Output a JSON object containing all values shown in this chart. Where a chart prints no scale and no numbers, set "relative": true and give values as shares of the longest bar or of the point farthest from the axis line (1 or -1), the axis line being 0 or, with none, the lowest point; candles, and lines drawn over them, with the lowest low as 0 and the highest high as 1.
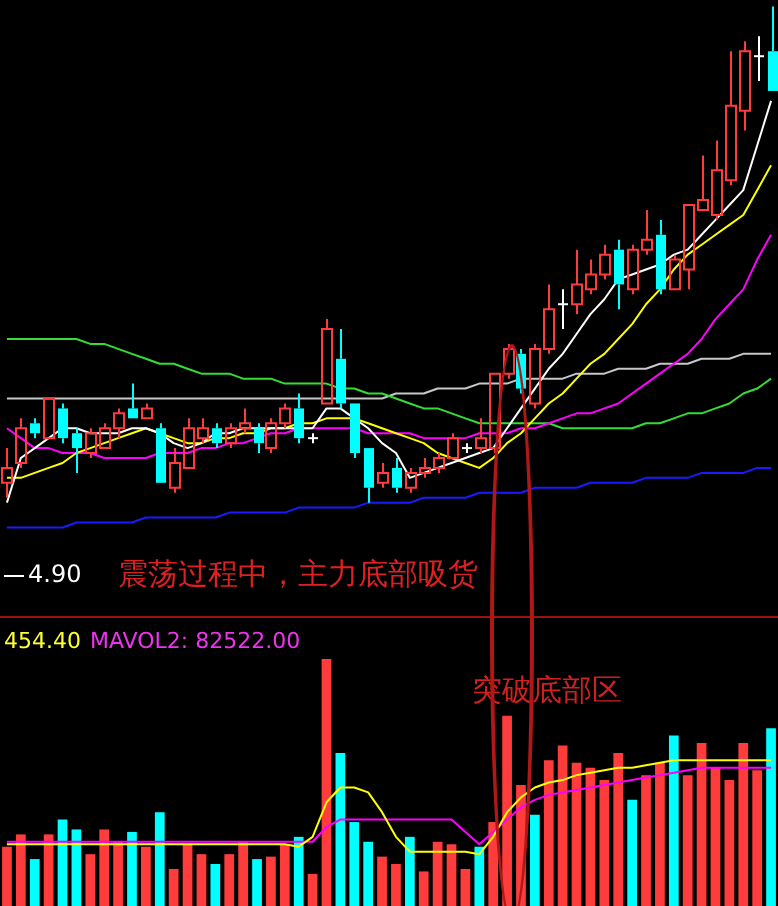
{
  "chart_data": [
    {
      "type": "candlestick",
      "relative": true,
      "legend": false,
      "categories": [
        null,
        null,
        null,
        null,
        null,
        null,
        null,
        null,
        null,
        null,
        null,
        null,
        null,
        null,
        null,
        null,
        null,
        null,
        null,
        null,
        null,
        null,
        null,
        null,
        null,
        null,
        null,
        null,
        null,
        null,
        null,
        null,
        null,
        null,
        null,
        null,
        null,
        null,
        null,
        null,
        null,
        null,
        null,
        null,
        null,
        null,
        null,
        null,
        null,
        null,
        null,
        null,
        null,
        null,
        null,
        null
      ],
      "ohlc": [
        [
          0.04,
          0.11,
          0.01,
          0.07
        ],
        [
          0.08,
          0.17,
          0.07,
          0.15
        ],
        [
          0.16,
          0.17,
          0.13,
          0.14
        ],
        [
          0.13,
          0.21,
          0.13,
          0.21
        ],
        [
          0.19,
          0.2,
          0.12,
          0.13
        ],
        [
          0.14,
          0.15,
          0.06,
          0.11
        ],
        [
          0.1,
          0.15,
          0.09,
          0.14
        ],
        [
          0.11,
          0.16,
          0.11,
          0.15
        ],
        [
          0.15,
          0.19,
          0.13,
          0.18
        ],
        [
          0.19,
          0.24,
          0.17,
          0.17
        ],
        [
          0.17,
          0.2,
          0.17,
          0.19
        ],
        [
          0.15,
          0.16,
          0.04,
          0.04
        ],
        [
          0.03,
          0.11,
          0.02,
          0.08
        ],
        [
          0.07,
          0.17,
          0.07,
          0.15
        ],
        [
          0.13,
          0.17,
          0.12,
          0.15
        ],
        [
          0.15,
          0.16,
          0.11,
          0.12
        ],
        [
          0.12,
          0.16,
          0.11,
          0.15
        ],
        [
          0.15,
          0.19,
          0.14,
          0.16
        ],
        [
          0.15,
          0.16,
          0.1,
          0.12
        ],
        [
          0.11,
          0.17,
          0.1,
          0.16
        ],
        [
          0.16,
          0.2,
          0.15,
          0.19
        ],
        [
          0.19,
          0.22,
          0.12,
          0.13
        ],
        [
          0.13,
          0.14,
          0.12,
          0.13
        ],
        [
          0.2,
          0.37,
          0.2,
          0.35
        ],
        [
          0.29,
          0.35,
          0.19,
          0.2
        ],
        [
          0.2,
          0.2,
          0.09,
          0.1
        ],
        [
          0.11,
          0.11,
          0,
          0.03
        ],
        [
          0.04,
          0.08,
          0.03,
          0.06
        ],
        [
          0.07,
          0.09,
          0.02,
          0.03
        ],
        [
          0.03,
          0.07,
          0.02,
          0.06
        ],
        [
          0.06,
          0.09,
          0.05,
          0.07
        ],
        [
          0.07,
          0.1,
          0.06,
          0.09
        ],
        [
          0.09,
          0.14,
          0.09,
          0.13
        ],
        [
          0.11,
          0.12,
          0.1,
          0.11
        ],
        [
          0.11,
          0.17,
          0.1,
          0.13
        ],
        [
          0.11,
          0.26,
          0.1,
          0.26
        ],
        [
          0.26,
          0.32,
          0.25,
          0.31
        ],
        [
          0.3,
          0.31,
          0.22,
          0.23
        ],
        [
          0.2,
          0.32,
          0.19,
          0.31
        ],
        [
          0.31,
          0.44,
          0.3,
          0.39
        ],
        [
          0.4,
          0.43,
          0.35,
          0.4
        ],
        [
          0.4,
          0.51,
          0.38,
          0.44
        ],
        [
          0.43,
          0.49,
          0.42,
          0.46
        ],
        [
          0.46,
          0.52,
          0.45,
          0.5
        ],
        [
          0.51,
          0.53,
          0.39,
          0.44
        ],
        [
          0.43,
          0.52,
          0.42,
          0.51
        ],
        [
          0.51,
          0.59,
          0.5,
          0.53
        ],
        [
          0.54,
          0.57,
          0.42,
          0.43
        ],
        [
          0.43,
          0.5,
          0.43,
          0.49
        ],
        [
          0.47,
          0.6,
          0.43,
          0.6
        ],
        [
          0.59,
          0.7,
          0.59,
          0.61
        ],
        [
          0.58,
          0.73,
          0.57,
          0.67
        ],
        [
          0.65,
          0.91,
          0.64,
          0.8
        ],
        [
          0.79,
          0.93,
          0.75,
          0.91
        ],
        [
          0.9,
          0.94,
          0.85,
          0.9
        ],
        [
          0.91,
          1,
          0.83,
          0.83
        ]
      ],
      "colors": [
        "#ff3c3c",
        "#ff3c3c",
        "#00ffff",
        "#ff3c3c",
        "#00ffff",
        "#00ffff",
        "#ff3c3c",
        "#ff3c3c",
        "#ff3c3c",
        "#00ffff",
        "#ff3c3c",
        "#00ffff",
        "#ff3c3c",
        "#ff3c3c",
        "#ff3c3c",
        "#00ffff",
        "#ff3c3c",
        "#ff3c3c",
        "#00ffff",
        "#ff3c3c",
        "#ff3c3c",
        "#00ffff",
        "#ffffff",
        "#ff3c3c",
        "#00ffff",
        "#00ffff",
        "#00ffff",
        "#ff3c3c",
        "#00ffff",
        "#ff3c3c",
        "#ff3c3c",
        "#ff3c3c",
        "#ff3c3c",
        "#ffffff",
        "#ff3c3c",
        "#ff3c3c",
        "#ff3c3c",
        "#00ffff",
        "#ff3c3c",
        "#ff3c3c",
        "#ffffff",
        "#ff3c3c",
        "#ff3c3c",
        "#ff3c3c",
        "#00ffff",
        "#ff3c3c",
        "#ff3c3c",
        "#00ffff",
        "#ff3c3c",
        "#ff3c3c",
        "#ff3c3c",
        "#ff3c3c",
        "#ff3c3c",
        "#ff3c3c",
        "#ffffff",
        "#00ffff"
      ],
      "series": [
        {
          "type": "line",
          "color": "#ffffff",
          "values": [
            0,
            0.09,
            0.11,
            0.13,
            0.15,
            0.15,
            0.14,
            0.14,
            0.14,
            0.15,
            0.15,
            0.14,
            0.12,
            0.11,
            0.12,
            0.14,
            0.14,
            0.15,
            0.15,
            0.15,
            0.15,
            0.15,
            0.15,
            0.19,
            0.19,
            0.17,
            0.15,
            0.12,
            0.1,
            0.05,
            0.06,
            0.07,
            0.08,
            0.09,
            0.1,
            0.11,
            0.15,
            0.19,
            0.23,
            0.27,
            0.3,
            0.34,
            0.38,
            0.41,
            0.45,
            0.46,
            0.47,
            0.48,
            0.5,
            0.51,
            0.54,
            0.57,
            0.6,
            0.63,
            0.72,
            0.81
          ]
        },
        {
          "type": "line",
          "color": "#ffff00",
          "values": [
            0.05,
            0.05,
            0.06,
            0.07,
            0.08,
            0.1,
            0.11,
            0.12,
            0.13,
            0.14,
            0.15,
            0.14,
            0.13,
            0.12,
            0.12,
            0.13,
            0.13,
            0.14,
            0.14,
            0.15,
            0.15,
            0.16,
            0.16,
            0.17,
            0.17,
            0.17,
            0.16,
            0.15,
            0.14,
            0.13,
            0.12,
            0.1,
            0.09,
            0.08,
            0.07,
            0.09,
            0.12,
            0.14,
            0.17,
            0.2,
            0.22,
            0.25,
            0.28,
            0.3,
            0.33,
            0.36,
            0.4,
            0.43,
            0.47,
            0.5,
            0.52,
            0.54,
            0.56,
            0.58,
            0.63,
            0.68
          ]
        },
        {
          "type": "line",
          "color": "#ff00ff",
          "values": [
            0.15,
            0.13,
            0.11,
            0.11,
            0.1,
            0.1,
            0.1,
            0.09,
            0.09,
            0.09,
            0.09,
            0.1,
            0.1,
            0.1,
            0.11,
            0.11,
            0.12,
            0.12,
            0.13,
            0.14,
            0.14,
            0.15,
            0.15,
            0.15,
            0.15,
            0.15,
            0.14,
            0.14,
            0.14,
            0.14,
            0.13,
            0.13,
            0.13,
            0.13,
            0.14,
            0.14,
            0.14,
            0.15,
            0.15,
            0.16,
            0.17,
            0.18,
            0.18,
            0.19,
            0.2,
            0.22,
            0.24,
            0.26,
            0.28,
            0.3,
            0.33,
            0.37,
            0.4,
            0.43,
            0.49,
            0.54
          ]
        },
        {
          "type": "line",
          "color": "#33dd33",
          "values": [
            0.33,
            0.33,
            0.33,
            0.33,
            0.33,
            0.33,
            0.32,
            0.32,
            0.31,
            0.3,
            0.29,
            0.28,
            0.28,
            0.27,
            0.26,
            0.26,
            0.26,
            0.25,
            0.25,
            0.25,
            0.24,
            0.24,
            0.24,
            0.24,
            0.23,
            0.23,
            0.22,
            0.22,
            0.21,
            0.2,
            0.19,
            0.19,
            0.18,
            0.17,
            0.16,
            0.16,
            0.16,
            0.16,
            0.16,
            0.16,
            0.15,
            0.15,
            0.15,
            0.15,
            0.15,
            0.15,
            0.16,
            0.16,
            0.17,
            0.18,
            0.18,
            0.19,
            0.2,
            0.22,
            0.23,
            0.25
          ]
        },
        {
          "type": "line",
          "color": "#c8c8c8",
          "values": [
            0.21,
            0.21,
            0.21,
            0.21,
            0.21,
            0.21,
            0.21,
            0.21,
            0.21,
            0.21,
            0.21,
            0.21,
            0.21,
            0.21,
            0.21,
            0.21,
            0.21,
            0.21,
            0.21,
            0.21,
            0.21,
            0.21,
            0.21,
            0.21,
            0.21,
            0.21,
            0.21,
            0.21,
            0.22,
            0.22,
            0.22,
            0.23,
            0.23,
            0.23,
            0.24,
            0.24,
            0.24,
            0.25,
            0.25,
            0.25,
            0.25,
            0.26,
            0.26,
            0.26,
            0.27,
            0.27,
            0.27,
            0.28,
            0.28,
            0.28,
            0.29,
            0.29,
            0.29,
            0.3,
            0.3,
            0.3
          ]
        },
        {
          "type": "line",
          "color": "#1a1aff",
          "values": [
            -0.05,
            -0.05,
            -0.05,
            -0.05,
            -0.05,
            -0.04,
            -0.04,
            -0.04,
            -0.04,
            -0.04,
            -0.03,
            -0.03,
            -0.03,
            -0.03,
            -0.03,
            -0.03,
            -0.02,
            -0.02,
            -0.02,
            -0.02,
            -0.02,
            -0.01,
            -0.01,
            -0.01,
            -0.01,
            -0.01,
            0,
            0,
            0,
            0,
            0.01,
            0.01,
            0.01,
            0.01,
            0.02,
            0.02,
            0.02,
            0.02,
            0.03,
            0.03,
            0.03,
            0.03,
            0.04,
            0.04,
            0.04,
            0.04,
            0.05,
            0.05,
            0.05,
            0.05,
            0.06,
            0.06,
            0.06,
            0.06,
            0.07,
            0.07
          ]
        }
      ],
      "annotations": [
        "4.90",
        "震荡过程中，主力底部吸货"
      ]
    },
    {
      "type": "bar",
      "relative": true,
      "legend": false,
      "categories": [
        null,
        null,
        null,
        null,
        null,
        null,
        null,
        null,
        null,
        null,
        null,
        null,
        null,
        null,
        null,
        null,
        null,
        null,
        null,
        null,
        null,
        null,
        null,
        null,
        null,
        null,
        null,
        null,
        null,
        null,
        null,
        null,
        null,
        null,
        null,
        null,
        null,
        null,
        null,
        null,
        null,
        null,
        null,
        null,
        null,
        null,
        null,
        null,
        null,
        null,
        null,
        null,
        null,
        null,
        null,
        null
      ],
      "series": [
        {
          "type": "bar",
          "values": [
            0.24,
            0.29,
            0.19,
            0.29,
            0.35,
            0.31,
            0.21,
            0.31,
            0.26,
            0.3,
            0.24,
            0.38,
            0.15,
            0.25,
            0.21,
            0.17,
            0.21,
            0.26,
            0.19,
            0.2,
            0.25,
            0.28,
            0.13,
            1,
            0.62,
            0.34,
            0.26,
            0.2,
            0.17,
            0.28,
            0.14,
            0.26,
            0.25,
            0.15,
            0.24,
            0.34,
            0.77,
            0.49,
            0.37,
            0.59,
            0.65,
            0.58,
            0.56,
            0.51,
            0.62,
            0.43,
            0.53,
            0.58,
            0.69,
            0.53,
            0.66,
            0.56,
            0.51,
            0.66,
            0.55,
            0.72
          ],
          "colors": [
            "#ff3c3c",
            "#ff3c3c",
            "#00ffff",
            "#ff3c3c",
            "#00ffff",
            "#00ffff",
            "#ff3c3c",
            "#ff3c3c",
            "#ff3c3c",
            "#00ffff",
            "#ff3c3c",
            "#00ffff",
            "#ff3c3c",
            "#ff3c3c",
            "#ff3c3c",
            "#00ffff",
            "#ff3c3c",
            "#ff3c3c",
            "#00ffff",
            "#ff3c3c",
            "#ff3c3c",
            "#00ffff",
            "#ff3c3c",
            "#ff3c3c",
            "#00ffff",
            "#00ffff",
            "#00ffff",
            "#ff3c3c",
            "#ff3c3c",
            "#00ffff",
            "#ff3c3c",
            "#ff3c3c",
            "#ff3c3c",
            "#ff3c3c",
            "#00ffff",
            "#ff3c3c",
            "#ff3c3c",
            "#ff3c3c",
            "#00ffff",
            "#ff3c3c",
            "#ff3c3c",
            "#ff3c3c",
            "#ff3c3c",
            "#ff3c3c",
            "#ff3c3c",
            "#00ffff",
            "#ff3c3c",
            "#ff3c3c",
            "#00ffff",
            "#ff3c3c",
            "#ff3c3c",
            "#ff3c3c",
            "#ff3c3c",
            "#ff3c3c",
            "#ff3c3c",
            "#00ffff"
          ]
        },
        {
          "type": "line",
          "color": "#ffff00",
          "values": [
            0.25,
            0.25,
            0.25,
            0.25,
            0.25,
            0.25,
            0.25,
            0.25,
            0.25,
            0.25,
            0.25,
            0.25,
            0.25,
            0.25,
            0.25,
            0.25,
            0.25,
            0.25,
            0.25,
            0.25,
            0.25,
            0.24,
            0.28,
            0.42,
            0.48,
            0.48,
            0.46,
            0.38,
            0.28,
            0.22,
            0.22,
            0.22,
            0.22,
            0.22,
            0.21,
            0.28,
            0.38,
            0.44,
            0.48,
            0.5,
            0.51,
            0.53,
            0.54,
            0.55,
            0.56,
            0.56,
            0.57,
            0.58,
            0.59,
            0.59,
            0.59,
            0.59,
            0.59,
            0.59,
            0.59,
            0.59
          ]
        },
        {
          "type": "line",
          "color": "#ff00ff",
          "values": [
            0.26,
            0.26,
            0.26,
            0.26,
            0.26,
            0.26,
            0.26,
            0.26,
            0.26,
            0.26,
            0.26,
            0.26,
            0.26,
            0.26,
            0.26,
            0.26,
            0.26,
            0.26,
            0.26,
            0.26,
            0.26,
            0.26,
            0.26,
            0.32,
            0.35,
            0.35,
            0.35,
            0.35,
            0.35,
            0.35,
            0.35,
            0.35,
            0.35,
            0.3,
            0.25,
            0.3,
            0.35,
            0.4,
            0.43,
            0.45,
            0.46,
            0.47,
            0.48,
            0.49,
            0.5,
            0.51,
            0.52,
            0.53,
            0.54,
            0.55,
            0.56,
            0.56,
            0.56,
            0.56,
            0.56,
            0.56
          ]
        }
      ],
      "annotations": [
        "454.40",
        "MAVOL2: 82522.00",
        "突破底部区"
      ]
    }
  ]
}
